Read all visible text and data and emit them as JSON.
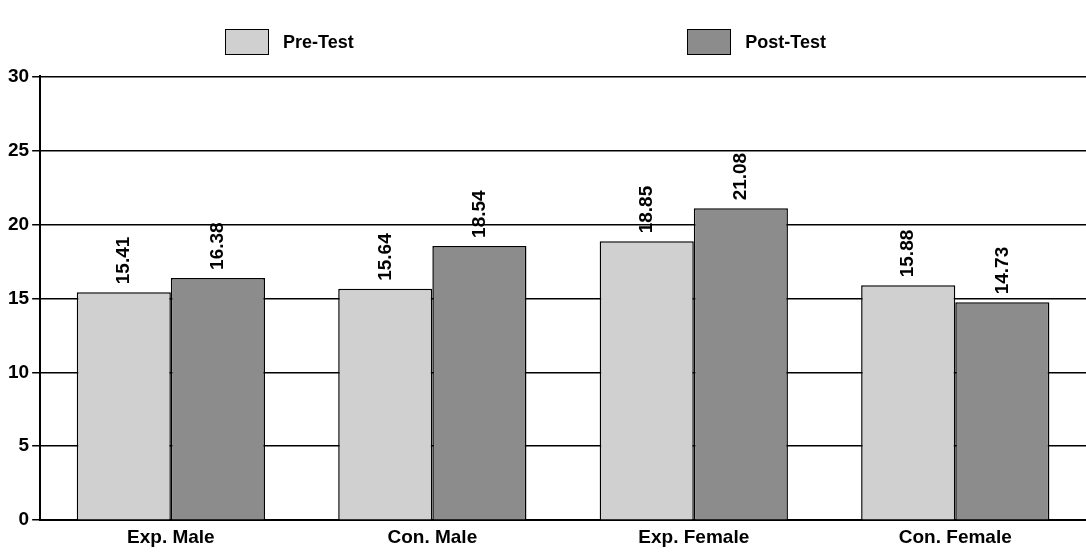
{
  "chart_data": {
    "type": "bar",
    "categories": [
      "Exp. Male",
      "Con. Male",
      "Exp. Female",
      "Con. Female"
    ],
    "series": [
      {
        "name": "Pre-Test",
        "color": "#d0d0d0",
        "values": [
          15.41,
          15.64,
          18.85,
          15.88
        ]
      },
      {
        "name": "Post-Test",
        "color": "#8c8c8c",
        "values": [
          16.38,
          18.54,
          21.08,
          14.73
        ]
      }
    ],
    "ylim": [
      0,
      30
    ],
    "yticks": [
      0,
      5,
      10,
      15,
      20,
      25,
      30
    ],
    "grid": "y",
    "legend": "top",
    "data_labels": true
  }
}
